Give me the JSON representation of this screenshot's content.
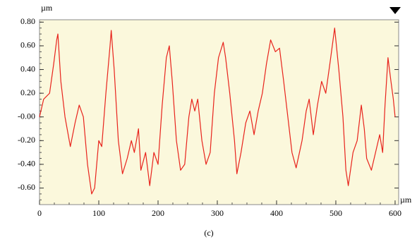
{
  "chart_data": {
    "type": "line",
    "y_unit": "µm",
    "x_unit": "µm",
    "caption": "(c)",
    "x": [
      0,
      7,
      17,
      24,
      29,
      31,
      36,
      43,
      52,
      60,
      67,
      74,
      81,
      88,
      93,
      100,
      105,
      112,
      119,
      121,
      126,
      133,
      140,
      148,
      155,
      160,
      167,
      171,
      179,
      186,
      193,
      200,
      207,
      214,
      219,
      224,
      231,
      238,
      245,
      252,
      257,
      262,
      267,
      274,
      281,
      288,
      295,
      302,
      310,
      314,
      321,
      329,
      333,
      340,
      348,
      355,
      362,
      369,
      376,
      383,
      390,
      398,
      405,
      412,
      419,
      426,
      433,
      443,
      450,
      455,
      462,
      469,
      476,
      483,
      490,
      498,
      505,
      512,
      517,
      521,
      529,
      536,
      543,
      548,
      552,
      560,
      567,
      574,
      579,
      583,
      588,
      593,
      597,
      600
    ],
    "series": [
      {
        "color": "#e8231c",
        "values": [
          0.0,
          0.15,
          0.2,
          0.45,
          0.65,
          0.7,
          0.3,
          0.0,
          -0.25,
          -0.05,
          0.1,
          0.0,
          -0.4,
          -0.65,
          -0.6,
          -0.2,
          -0.25,
          0.2,
          0.6,
          0.73,
          0.4,
          -0.2,
          -0.48,
          -0.35,
          -0.2,
          -0.3,
          -0.1,
          -0.45,
          -0.3,
          -0.58,
          -0.3,
          -0.4,
          0.1,
          0.5,
          0.6,
          0.3,
          -0.2,
          -0.45,
          -0.4,
          0.0,
          0.15,
          0.05,
          0.15,
          -0.2,
          -0.4,
          -0.3,
          0.2,
          0.5,
          0.63,
          0.5,
          0.2,
          -0.2,
          -0.48,
          -0.3,
          -0.05,
          0.05,
          -0.15,
          0.05,
          0.2,
          0.45,
          0.65,
          0.55,
          0.58,
          0.3,
          0.0,
          -0.3,
          -0.43,
          -0.2,
          0.05,
          0.15,
          -0.15,
          0.1,
          0.3,
          0.2,
          0.45,
          0.75,
          0.4,
          0.0,
          -0.45,
          -0.58,
          -0.3,
          -0.2,
          0.1,
          -0.1,
          -0.35,
          -0.45,
          -0.3,
          -0.15,
          -0.3,
          0.1,
          0.5,
          0.3,
          0.15,
          0.0
        ]
      }
    ],
    "xlim": [
      0,
      606
    ],
    "ylim": [
      -0.74,
      0.82
    ],
    "xticks": [
      0,
      100,
      200,
      300,
      400,
      500,
      600
    ],
    "yticks": [
      {
        "value": 0.8,
        "label": "0.80"
      },
      {
        "value": 0.6,
        "label": "0.60"
      },
      {
        "value": 0.4,
        "label": "0.40"
      },
      {
        "value": 0.2,
        "label": "0.20"
      },
      {
        "value": 0,
        "label": "-0.00"
      },
      {
        "value": -0.2,
        "label": "-0.20"
      },
      {
        "value": -0.4,
        "label": "-0.40"
      },
      {
        "value": -0.6,
        "label": "-0.60"
      }
    ],
    "plot_background": "#fbf8dc"
  }
}
